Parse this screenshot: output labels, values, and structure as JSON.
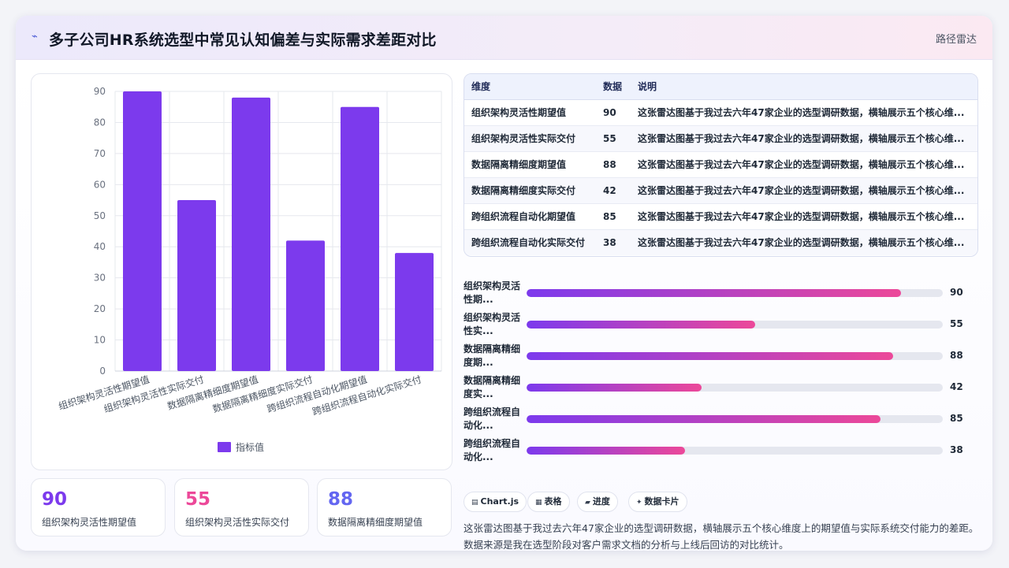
{
  "header": {
    "icon": "wave-icon",
    "title": "多子公司HR系统选型中常见认知偏差与实际需求差距对比",
    "tag": "路径雷达"
  },
  "chart_data": {
    "type": "bar",
    "categories": [
      "组织架构灵活性期望值",
      "组织架构灵活性实际交付",
      "数据隔离精细度期望值",
      "数据隔离精细度实际交付",
      "跨组织流程自动化期望值",
      "跨组织流程自动化实际交付"
    ],
    "series": [
      {
        "name": "指标值",
        "values": [
          90,
          55,
          88,
          42,
          85,
          38
        ]
      }
    ],
    "ylim": [
      0,
      90
    ],
    "yticks": [
      0,
      10,
      20,
      30,
      40,
      50,
      60,
      70,
      80,
      90
    ],
    "grid": true,
    "legend": "bottom",
    "color": "#7c3aed"
  },
  "stats": [
    {
      "value": "90",
      "label": "组织架构灵活性期望值",
      "color": "#7c3aed"
    },
    {
      "value": "55",
      "label": "组织架构灵活性实际交付",
      "color": "#ec4899"
    },
    {
      "value": "88",
      "label": "数据隔离精细度期望值",
      "color": "#6366f1"
    }
  ],
  "table": {
    "headers": [
      "维度",
      "数据",
      "说明"
    ],
    "rows": [
      {
        "dim": "组织架构灵活性期望值",
        "val": "90",
        "note": "这张雷达图基于我过去六年47家企业的选型调研数据，横轴展示五个核心维..."
      },
      {
        "dim": "组织架构灵活性实际交付",
        "val": "55",
        "note": "这张雷达图基于我过去六年47家企业的选型调研数据，横轴展示五个核心维..."
      },
      {
        "dim": "数据隔离精细度期望值",
        "val": "88",
        "note": "这张雷达图基于我过去六年47家企业的选型调研数据，横轴展示五个核心维..."
      },
      {
        "dim": "数据隔离精细度实际交付",
        "val": "42",
        "note": "这张雷达图基于我过去六年47家企业的选型调研数据，横轴展示五个核心维..."
      },
      {
        "dim": "跨组织流程自动化期望值",
        "val": "85",
        "note": "这张雷达图基于我过去六年47家企业的选型调研数据，横轴展示五个核心维..."
      },
      {
        "dim": "跨组织流程自动化实际交付",
        "val": "38",
        "note": "这张雷达图基于我过去六年47家企业的选型调研数据，横轴展示五个核心维..."
      }
    ]
  },
  "progress": {
    "max": 100,
    "items": [
      {
        "label_l1": "组织架构灵活",
        "label_l2": "性期...",
        "value": 90,
        "display": "90"
      },
      {
        "label_l1": "组织架构灵活",
        "label_l2": "性实...",
        "value": 55,
        "display": "55"
      },
      {
        "label_l1": "数据隔离精细",
        "label_l2": "度期...",
        "value": 88,
        "display": "88"
      },
      {
        "label_l1": "数据隔离精细",
        "label_l2": "度实...",
        "value": 42,
        "display": "42"
      },
      {
        "label_l1": "跨组织流程自",
        "label_l2": "动化...",
        "value": 85,
        "display": "85"
      },
      {
        "label_l1": "跨组织流程自",
        "label_l2": "动化...",
        "value": 38,
        "display": "38"
      }
    ]
  },
  "chips": [
    {
      "icon": "▤",
      "label": "Chart.js"
    },
    {
      "icon": "▦",
      "label": "表格"
    },
    {
      "icon": "▰",
      "label": "进度"
    },
    {
      "icon": "✦",
      "label": "数据卡片"
    }
  ],
  "description": "这张雷达图基于我过去六年47家企业的选型调研数据，横轴展示五个核心维度上的期望值与实际系统交付能力的差距。数据来源是我在选型阶段对客户需求文档的分析与上线后回访的对比统计。"
}
